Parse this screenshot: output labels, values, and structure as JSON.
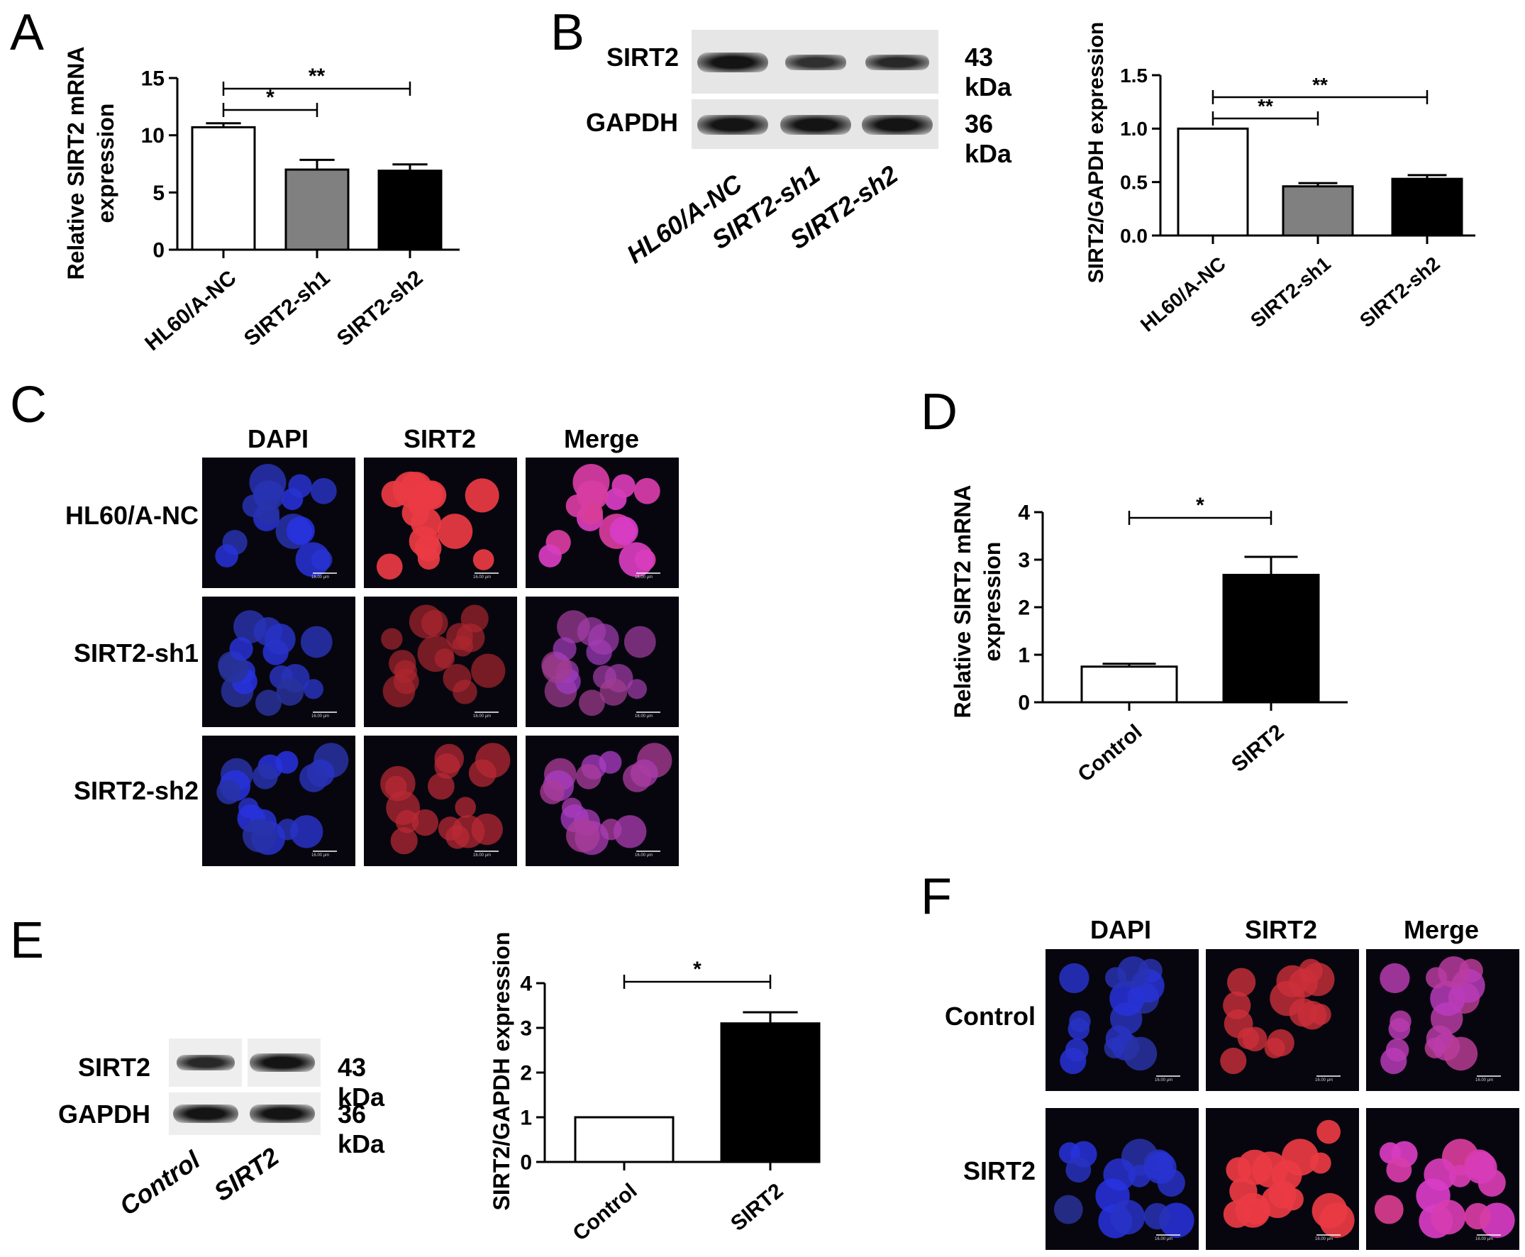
{
  "panels": {
    "A": "A",
    "B": "B",
    "C": "C",
    "D": "D",
    "E": "E",
    "F": "F"
  },
  "chart_data": [
    {
      "id": "A",
      "type": "bar",
      "title": "",
      "xlabel": "",
      "ylabel": "Relative SIRT2 mRNA expression",
      "ylabel_lines": [
        "Relative SIRT2 mRNA",
        "expression"
      ],
      "categories": [
        "HL60/A-NC",
        "SIRT2-sh1",
        "SIRT2-sh2"
      ],
      "values": [
        10.7,
        7.0,
        6.9
      ],
      "errors": [
        0.35,
        0.85,
        0.55
      ],
      "colors": [
        "#ffffff",
        "#808080",
        "#000000"
      ],
      "ylim": [
        0,
        15
      ],
      "yticks": [
        0,
        5,
        10,
        15
      ],
      "significance": [
        {
          "from": 0,
          "to": 1,
          "label": "*"
        },
        {
          "from": 0,
          "to": 2,
          "label": "**"
        }
      ]
    },
    {
      "id": "B",
      "type": "bar",
      "title": "",
      "xlabel": "",
      "ylabel": "SIRT2/GAPDH expression",
      "ylabel_lines": [
        "SIRT2/GAPDH expression"
      ],
      "categories": [
        "HL60/A-NC",
        "SIRT2-sh1",
        "SIRT2-sh2"
      ],
      "values": [
        1.0,
        0.46,
        0.53
      ],
      "errors": [
        0.0,
        0.03,
        0.035
      ],
      "colors": [
        "#ffffff",
        "#808080",
        "#000000"
      ],
      "ylim": [
        0,
        1.5
      ],
      "yticks": [
        "0.0",
        "0.5",
        "1.0",
        "1.5"
      ],
      "significance": [
        {
          "from": 0,
          "to": 1,
          "label": "**"
        },
        {
          "from": 0,
          "to": 2,
          "label": "**"
        }
      ]
    },
    {
      "id": "D",
      "type": "bar",
      "title": "",
      "xlabel": "",
      "ylabel": "Relative SIRT2 mRNA expression",
      "ylabel_lines": [
        "Relative SIRT2 mRNA",
        "expression"
      ],
      "categories": [
        "Control",
        "SIRT2"
      ],
      "values": [
        0.75,
        2.68
      ],
      "errors": [
        0.06,
        0.38
      ],
      "colors": [
        "#ffffff",
        "#000000"
      ],
      "ylim": [
        0,
        4
      ],
      "yticks": [
        0,
        1,
        2,
        3,
        4
      ],
      "significance": [
        {
          "from": 0,
          "to": 1,
          "label": "*"
        }
      ]
    },
    {
      "id": "E",
      "type": "bar",
      "title": "",
      "xlabel": "",
      "ylabel": "SIRT2/GAPDH expression",
      "ylabel_lines": [
        "SIRT2/GAPDH expression"
      ],
      "categories": [
        "Control",
        "SIRT2"
      ],
      "values": [
        1.0,
        3.1
      ],
      "errors": [
        0.0,
        0.25
      ],
      "colors": [
        "#ffffff",
        "#000000"
      ],
      "ylim": [
        0,
        4
      ],
      "yticks": [
        0,
        1,
        2,
        3,
        4
      ],
      "significance": [
        {
          "from": 0,
          "to": 1,
          "label": "*"
        }
      ]
    }
  ],
  "blotB": {
    "proteins": [
      "SIRT2",
      "GAPDH"
    ],
    "sizes": [
      "43 kDa",
      "36 kDa"
    ],
    "lanes": [
      "HL60/A-NC",
      "SIRT2-sh1",
      "SIRT2-sh2"
    ],
    "band_intensity": {
      "SIRT2": [
        1.0,
        0.45,
        0.6
      ],
      "GAPDH": [
        1.0,
        1.0,
        1.0
      ]
    }
  },
  "blotE": {
    "proteins": [
      "SIRT2",
      "GAPDH"
    ],
    "sizes": [
      "43 kDa",
      "36 kDa"
    ],
    "lanes": [
      "Control",
      "SIRT2"
    ],
    "band_intensity": {
      "SIRT2": [
        0.6,
        1.0
      ],
      "GAPDH": [
        1.0,
        1.0
      ]
    }
  },
  "micC": {
    "columns": [
      "DAPI",
      "SIRT2",
      "Merge"
    ],
    "rows": [
      "HL60/A-NC",
      "SIRT2-sh1",
      "SIRT2-sh2"
    ],
    "scale_text": "16.00 μm"
  },
  "micF": {
    "columns": [
      "DAPI",
      "SIRT2",
      "Merge"
    ],
    "rows": [
      "Control",
      "SIRT2"
    ],
    "scale_text": "16.00 μm"
  }
}
